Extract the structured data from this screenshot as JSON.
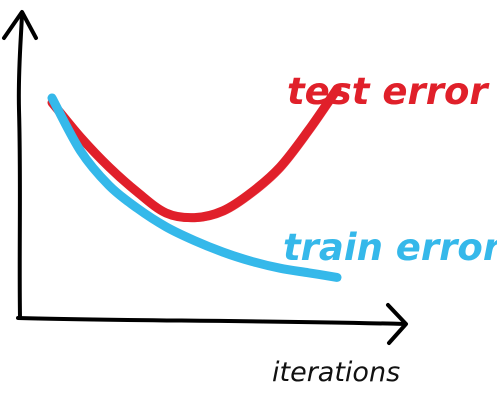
{
  "chart_data": {
    "type": "line",
    "xlabel": "iterations",
    "ylabel": "",
    "grid": false,
    "x": [
      0,
      1,
      2,
      3,
      4,
      5,
      6,
      7,
      8,
      9,
      10
    ],
    "series": [
      {
        "name": "test error",
        "color": "#e0202a",
        "values": [
          0.88,
          0.73,
          0.6,
          0.49,
          0.4,
          0.38,
          0.41,
          0.49,
          0.6,
          0.76,
          0.94
        ]
      },
      {
        "name": "train error",
        "color": "#35b8ea",
        "values": [
          0.9,
          0.67,
          0.52,
          0.42,
          0.34,
          0.28,
          0.23,
          0.19,
          0.16,
          0.14,
          0.12
        ]
      }
    ],
    "legend": "labels at curve ends"
  }
}
